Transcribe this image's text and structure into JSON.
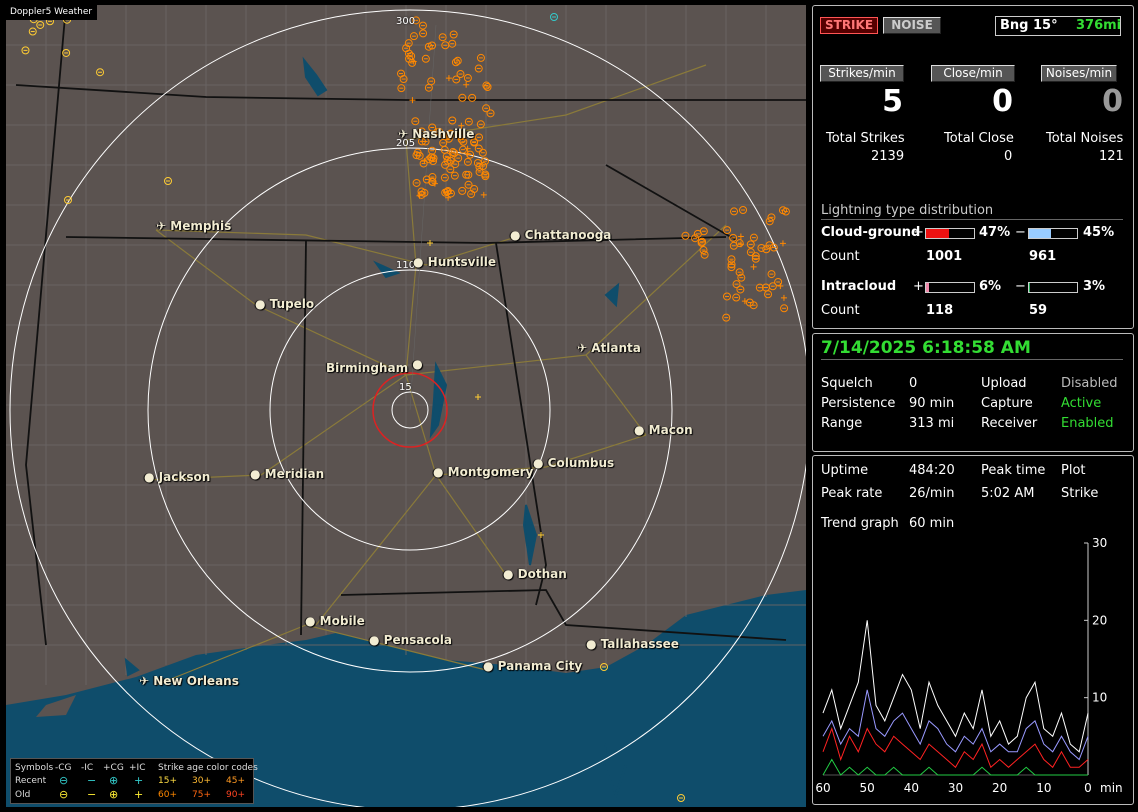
{
  "app": {
    "title": "Doppler5 Weather"
  },
  "map": {
    "cities": [
      {
        "name": "Nashville",
        "icon": "airport-icon"
      },
      {
        "name": "Memphis",
        "icon": "airport-icon"
      },
      {
        "name": "Chattanooga",
        "icon": "city-dot-icon"
      },
      {
        "name": "Huntsville",
        "icon": "city-dot-icon"
      },
      {
        "name": "Tupelo",
        "icon": "city-dot-icon"
      },
      {
        "name": "Birmingham",
        "icon": "city-dot-icon"
      },
      {
        "name": "Atlanta",
        "icon": "airport-icon"
      },
      {
        "name": "Macon",
        "icon": "city-dot-icon"
      },
      {
        "name": "Columbus",
        "icon": "city-dot-icon"
      },
      {
        "name": "Montgomery",
        "icon": "city-dot-icon"
      },
      {
        "name": "Meridian",
        "icon": "city-dot-icon"
      },
      {
        "name": "Jackson",
        "icon": "city-dot-icon"
      },
      {
        "name": "Dothan",
        "icon": "city-dot-icon"
      },
      {
        "name": "Mobile",
        "icon": "city-dot-icon"
      },
      {
        "name": "Pensacola",
        "icon": "city-dot-icon"
      },
      {
        "name": "Tallahassee",
        "icon": "city-dot-icon"
      },
      {
        "name": "Panama City",
        "icon": "city-dot-icon"
      },
      {
        "name": "New Orleans",
        "icon": "airport-icon"
      }
    ],
    "range_labels": [
      "300",
      "205",
      "110",
      "15"
    ],
    "colors": {
      "land": "#5b5350",
      "water": "#0f4d6b",
      "county": "#6e6e6e",
      "state": "#111111",
      "road": "#8a7a3a",
      "ring": "#ffffff",
      "center_ring": "#dd2222",
      "strike_recent": "#ff8800",
      "strike_old": "#ffcc33"
    }
  },
  "legend": {
    "row0": [
      "Symbols",
      "-CG",
      "-IC",
      "+CG",
      "+IC",
      "Strike age color codes"
    ],
    "recent_label": "Recent",
    "old_label": "Old",
    "recent_ages": [
      "15+",
      "30+",
      "45+"
    ],
    "old_ages": [
      "60+",
      "75+",
      "90+"
    ],
    "recent_symbols": [
      "⊖",
      "−",
      "⊕",
      "+"
    ],
    "old_symbols": [
      "⊖",
      "−",
      "⊕",
      "+"
    ]
  },
  "status": {
    "strike_button": "STRIKE",
    "noise_button": "NOISE",
    "bearing_label": "Bng 15°",
    "distance": "376mi",
    "rate_buttons": [
      "Strikes/min",
      "Close/min",
      "Noises/min"
    ],
    "strikes_per_min": "5",
    "close_per_min": "0",
    "noises_per_min": "0",
    "total_labels": [
      "Total Strikes",
      "Total Close",
      "Total Noises"
    ],
    "total_strikes": "2139",
    "total_close": "0",
    "total_noises": "121",
    "distribution_title": "Lightning type distribution",
    "cg_label": "Cloud-ground",
    "ic_label": "Intracloud",
    "count_label": "Count",
    "plus": "+",
    "minus": "−",
    "cg_pos_pct": "47%",
    "cg_neg_pct": "45%",
    "ic_pos_pct": "6%",
    "ic_neg_pct": "3%",
    "cg_pos_count": "1001",
    "cg_neg_count": "961",
    "ic_pos_count": "118",
    "ic_neg_count": "59",
    "bars": {
      "cg_pos": 0.47,
      "cg_neg": 0.45,
      "ic_pos": 0.06,
      "ic_neg": 0.03
    },
    "bar_colors": {
      "cg_pos": "#ee1111",
      "cg_neg": "#99ccff",
      "ic_pos": "#ee88aa",
      "ic_neg": "#22aa55"
    }
  },
  "settings": {
    "datetime": "7/14/2025 6:18:58 AM",
    "rows": [
      {
        "k1": "Squelch",
        "v1": "0",
        "k2": "Upload",
        "v2": "Disabled"
      },
      {
        "k1": "Persistence",
        "v1": "90 min",
        "k2": "Capture",
        "v2": "Active"
      },
      {
        "k1": "Range",
        "v1": "313 mi",
        "k2": "Receiver",
        "v2": "Enabled"
      }
    ]
  },
  "trend": {
    "uptime_label": "Uptime",
    "uptime": "484:20",
    "peak_time_label": "Peak time",
    "peak_time": "5:02 AM",
    "plot_label": "Plot",
    "plot_value": "Strike",
    "peak_rate_label": "Peak rate",
    "peak_rate": "26/min",
    "graph_label": "Trend graph",
    "graph_value": "60 min",
    "y_ticks": [
      "30",
      "20",
      "10"
    ],
    "x_ticks": [
      "60",
      "50",
      "40",
      "30",
      "20",
      "10",
      "0"
    ],
    "x_unit": "min"
  },
  "chart_data": {
    "type": "line",
    "xlabel": "min",
    "ylabel": "",
    "x": [
      60,
      58,
      56,
      54,
      52,
      50,
      48,
      46,
      44,
      42,
      40,
      38,
      36,
      34,
      32,
      30,
      28,
      26,
      24,
      22,
      20,
      18,
      16,
      14,
      12,
      10,
      8,
      6,
      4,
      2,
      0
    ],
    "xlim": [
      60,
      0
    ],
    "ylim": [
      0,
      30
    ],
    "series": [
      {
        "values": [
          8,
          11,
          6,
          9,
          12,
          20,
          9,
          7,
          10,
          13,
          11,
          6,
          12,
          9,
          7,
          5,
          8,
          6,
          11,
          5,
          7,
          4,
          5,
          10,
          12,
          6,
          5,
          8,
          4,
          3,
          8
        ],
        "color": "#ffffff"
      },
      {
        "values": [
          5,
          7,
          4,
          6,
          5,
          11,
          6,
          5,
          7,
          8,
          6,
          4,
          7,
          6,
          4,
          3,
          5,
          4,
          6,
          3,
          4,
          3,
          3,
          6,
          7,
          4,
          3,
          5,
          3,
          2,
          5
        ],
        "color": "#9999ff"
      },
      {
        "values": [
          3,
          6,
          2,
          5,
          3,
          6,
          4,
          3,
          5,
          4,
          3,
          2,
          4,
          3,
          2,
          1,
          3,
          2,
          4,
          1,
          2,
          1,
          2,
          3,
          4,
          2,
          1,
          3,
          1,
          1,
          2
        ],
        "color": "#ff2222"
      },
      {
        "values": [
          0,
          2,
          0,
          1,
          0,
          1,
          0,
          0,
          1,
          0,
          0,
          0,
          1,
          0,
          0,
          0,
          0,
          0,
          1,
          0,
          0,
          0,
          0,
          1,
          0,
          0,
          0,
          0,
          0,
          0,
          0
        ],
        "color": "#22cc44"
      }
    ]
  }
}
